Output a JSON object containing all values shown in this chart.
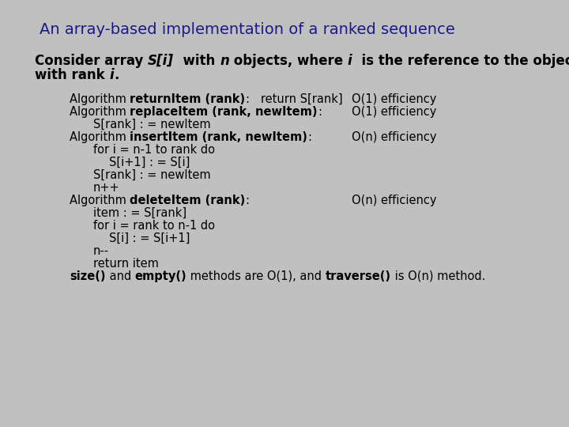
{
  "background_color": "#c0c0c0",
  "title": "An array-based implementation of a ranked sequence",
  "title_color": "#1a1a8c",
  "fig_width": 7.2,
  "fig_height": 5.4,
  "dpi": 100
}
